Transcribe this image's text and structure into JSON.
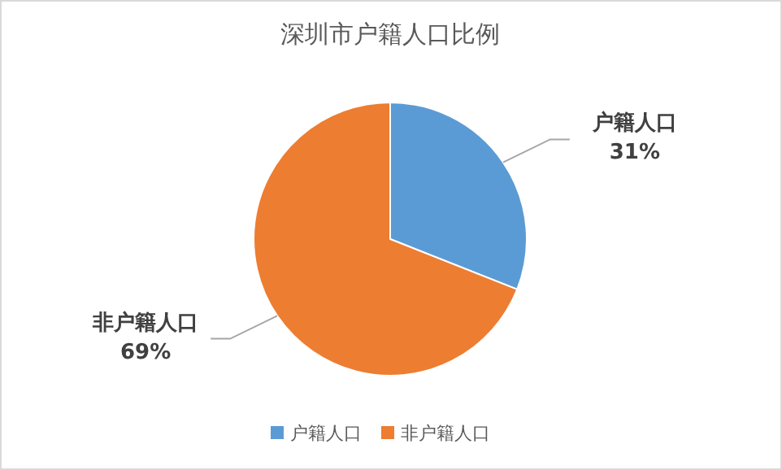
{
  "chart_data": {
    "type": "pie",
    "title": "深圳市户籍人口比例",
    "categories": [
      "户籍人口",
      "非户籍人口"
    ],
    "values": [
      31,
      69
    ],
    "colors": [
      "#5b9bd5",
      "#ed7d31"
    ],
    "value_labels": [
      "31%",
      "69%"
    ],
    "legend": "bottom"
  }
}
